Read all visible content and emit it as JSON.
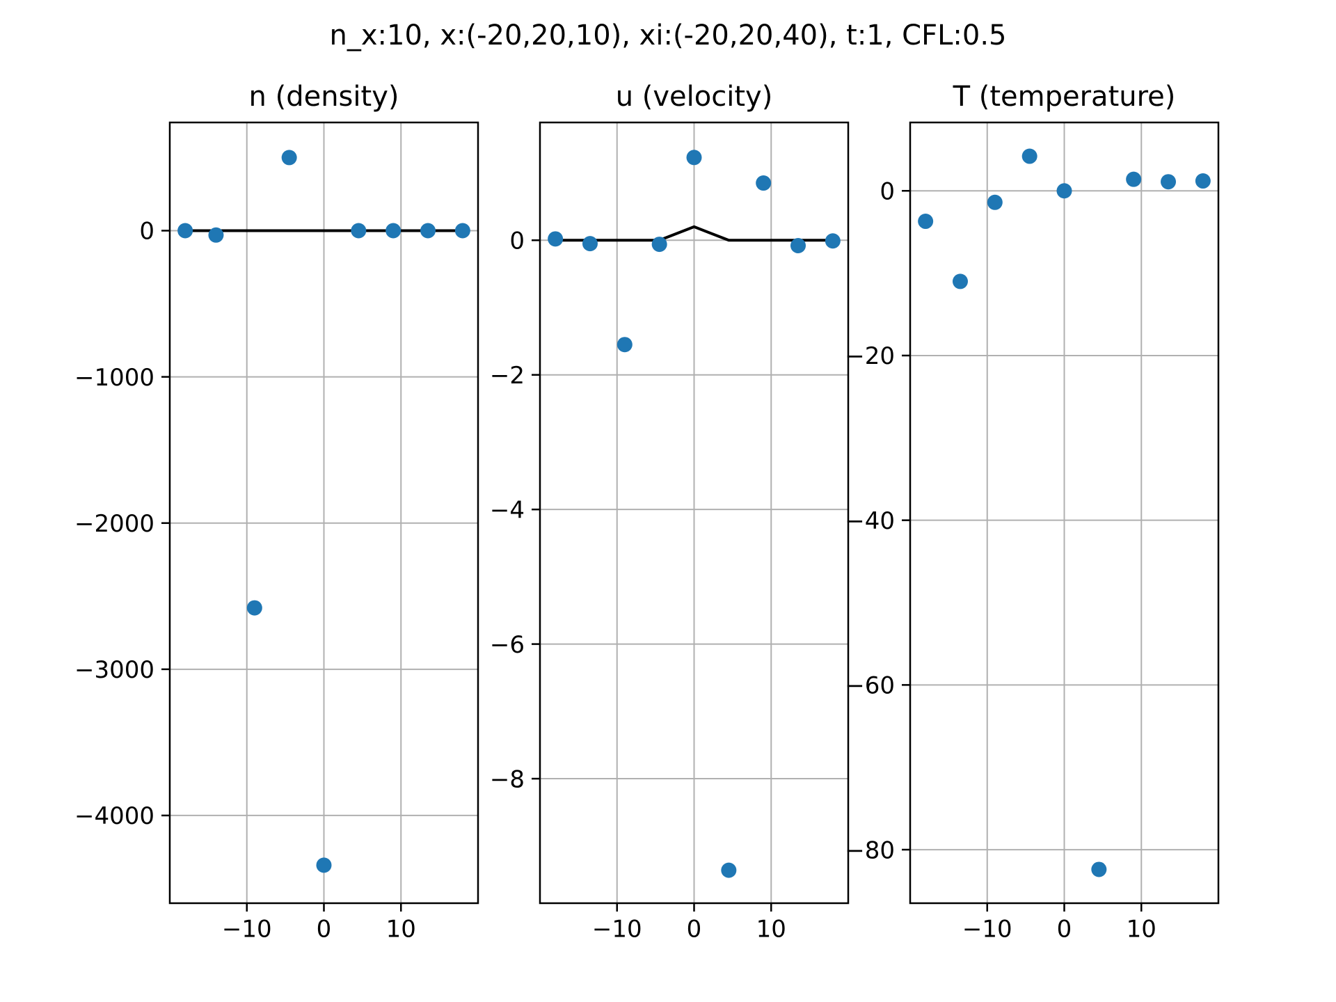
{
  "figure": {
    "suptitle": "n_x:10, x:(-20,20,10), xi:(-20,20,40), t:1, CFL:0.5"
  },
  "colors": {
    "points": "#1f77b4",
    "line": "#000000",
    "grid": "#b0b0b0",
    "axes": "#000000"
  },
  "chart_data": [
    {
      "type": "scatter",
      "title": "n (density)",
      "xlabel": "",
      "ylabel": "",
      "xlim": [
        -20,
        20
      ],
      "ylim": [
        -4600,
        740
      ],
      "xticks": [
        -10,
        0,
        10
      ],
      "xtick_labels": [
        "−10",
        "0",
        "10"
      ],
      "yticks": [
        0,
        -1000,
        -2000,
        -3000,
        -4000
      ],
      "ytick_labels": [
        "0",
        "−1000",
        "−2000",
        "−3000",
        "−4000"
      ],
      "grid": true,
      "series": [
        {
          "kind": "points",
          "x": [
            -18,
            -14,
            -9,
            -4.5,
            0,
            4.5,
            9,
            13.5,
            18
          ],
          "y": [
            0,
            -30,
            -2580,
            500,
            -4340,
            0,
            0,
            0,
            0
          ]
        },
        {
          "kind": "line",
          "x": [
            -18,
            -13.5,
            -9,
            -4.5,
            0,
            4.5,
            9,
            13.5,
            18
          ],
          "y": [
            0,
            0,
            0,
            0,
            0,
            0,
            0,
            0,
            0
          ]
        }
      ]
    },
    {
      "type": "scatter",
      "title": "u (velocity)",
      "xlabel": "",
      "ylabel": "",
      "xlim": [
        -20,
        20
      ],
      "ylim": [
        -9.85,
        1.75
      ],
      "xticks": [
        -10,
        0,
        10
      ],
      "xtick_labels": [
        "−10",
        "0",
        "10"
      ],
      "yticks": [
        0,
        -2,
        -4,
        -6,
        -8
      ],
      "ytick_labels": [
        "0",
        "−2",
        "−4",
        "−6",
        "−8"
      ],
      "grid": true,
      "series": [
        {
          "kind": "points",
          "x": [
            -18,
            -13.5,
            -9,
            -4.5,
            0,
            4.5,
            9,
            13.5,
            18
          ],
          "y": [
            0.02,
            -0.05,
            -1.55,
            -0.06,
            1.23,
            -9.36,
            0.85,
            -0.08,
            -0.01
          ]
        },
        {
          "kind": "line",
          "x": [
            -18,
            -13.5,
            -9,
            -4.5,
            0,
            4.5,
            9,
            13.5,
            18
          ],
          "y": [
            0,
            0,
            0,
            0,
            0.2,
            0,
            0,
            0,
            0
          ]
        }
      ]
    },
    {
      "type": "scatter",
      "title": "T (temperature)",
      "xlabel": "",
      "ylabel": "",
      "xlim": [
        -20,
        20
      ],
      "ylim": [
        -86.5,
        8.3
      ],
      "xticks": [
        -10,
        0,
        10
      ],
      "xtick_labels": [
        "−10",
        "0",
        "10"
      ],
      "yticks": [
        0,
        -20,
        -40,
        -60,
        -80
      ],
      "ytick_labels": [
        "0",
        "−20",
        "−40",
        "−60",
        "−80"
      ],
      "grid": true,
      "series": [
        {
          "kind": "points",
          "x": [
            -18,
            -13.5,
            -9,
            -4.5,
            0,
            4.5,
            9,
            13.5,
            18
          ],
          "y": [
            -3.7,
            -11,
            -1.4,
            4.2,
            0,
            -82.4,
            1.4,
            1.1,
            1.2
          ]
        }
      ]
    }
  ]
}
